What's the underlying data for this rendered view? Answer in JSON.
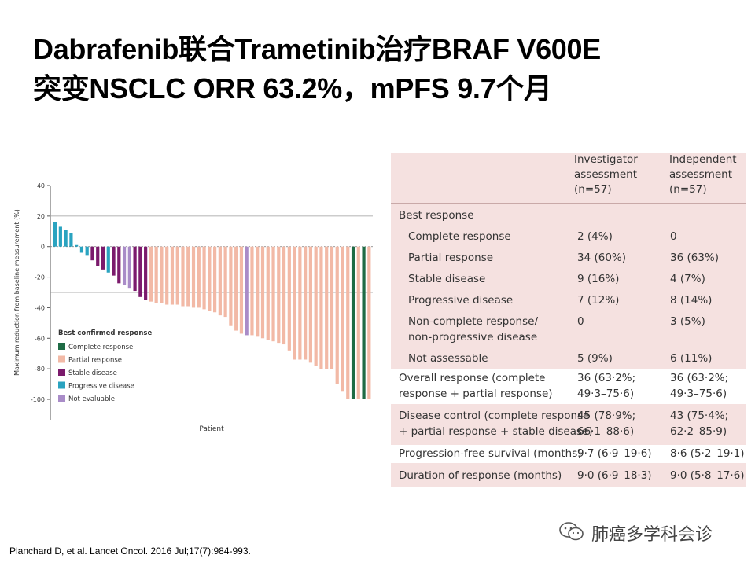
{
  "slide": {
    "title_line1": "Dabrafenib联合Trametinib治疗BRAF V600E",
    "title_line2": "突变NSCLC ORR 63.2%，mPFS 9.7个月",
    "citation": "Planchard D, et al. Lancet Oncol. 2016 Jul;17(7):984-993.",
    "brand": "肺癌多学科会诊"
  },
  "table": {
    "col2_header": "Investigator\nassessment\n(n=57)",
    "col3_header": "Independent\nassessment\n(n=57)",
    "section": "Best response",
    "rows": [
      {
        "label": "Complete response",
        "inv": "2 (4%)",
        "ind": "0"
      },
      {
        "label": "Partial response",
        "inv": "34 (60%)",
        "ind": "36 (63%)"
      },
      {
        "label": "Stable disease",
        "inv": "9 (16%)",
        "ind": "4 (7%)"
      },
      {
        "label": "Progressive disease",
        "inv": "7 (12%)",
        "ind": "8 (14%)"
      },
      {
        "label": "Non-complete response/",
        "label2": "non-progressive disease",
        "inv": "0",
        "ind": "3 (5%)"
      },
      {
        "label": "Not assessable",
        "inv": "5 (9%)",
        "ind": "6 (11%)"
      }
    ],
    "orr": {
      "label": "Overall response (complete",
      "label2": "response + partial response)",
      "inv": "36 (63·2%;",
      "inv2": "49·3–75·6)",
      "ind": "36 (63·2%;",
      "ind2": "49·3–75·6)"
    },
    "dcr": {
      "label": "Disease control (complete response",
      "label2": "+ partial response + stable disease)",
      "inv": "45 (78·9%;",
      "inv2": "66·1–88·6)",
      "ind": "43 (75·4%;",
      "ind2": "62·2–85·9)"
    },
    "pfs": {
      "label": "Progression-free survival (months)",
      "inv": "9·7 (6·9–19·6)",
      "ind": "8·6 (5·2–19·1)"
    },
    "dor": {
      "label": "Duration of response (months)",
      "inv": "9·0 (6·9–18·3)",
      "ind": "9·0 (5·8–17·6)"
    }
  },
  "chart_data": {
    "type": "bar",
    "xlabel": "Patient",
    "ylabel": "Maximum reduction from baseline measurement (%)",
    "ylim": [
      -100,
      40
    ],
    "yticks": [
      40,
      20,
      0,
      -20,
      -40,
      -60,
      -80,
      -100
    ],
    "reference_lines": [
      20,
      -30
    ],
    "legend_title": "Best confirmed response",
    "legend": [
      {
        "key": "CR",
        "name": "Complete response",
        "color": "#1e6b45"
      },
      {
        "key": "PR",
        "name": "Partial response",
        "color": "#f2b9a6"
      },
      {
        "key": "SD",
        "name": "Stable disease",
        "color": "#7b1a6c"
      },
      {
        "key": "PD",
        "name": "Progressive disease",
        "color": "#2aa3c0"
      },
      {
        "key": "NE",
        "name": "Not evaluable",
        "color": "#a98cc8"
      }
    ],
    "values": [
      16,
      13,
      11,
      9,
      1,
      -4,
      -6,
      -9,
      -13,
      -15,
      -17,
      -19,
      -24,
      -25,
      -27,
      -29,
      -33,
      -35,
      -36,
      -37,
      -37,
      -38,
      -38,
      -38,
      -39,
      -39,
      -40,
      -40,
      -41,
      -42,
      -43,
      -45,
      -46,
      -52,
      -55,
      -57,
      -58,
      -58,
      -59,
      -60,
      -61,
      -62,
      -63,
      -64,
      -68,
      -74,
      -74,
      -74,
      -76,
      -78,
      -80,
      -80,
      -80,
      -90,
      -95,
      -100,
      -100,
      -100,
      -100,
      -100
    ],
    "categories": [
      "PD",
      "PD",
      "PD",
      "PD",
      "PD",
      "PD",
      "PD",
      "SD",
      "SD",
      "SD",
      "PD",
      "SD",
      "SD",
      "NE",
      "NE",
      "SD",
      "SD",
      "SD",
      "PR",
      "PR",
      "PR",
      "PR",
      "PR",
      "PR",
      "PR",
      "PR",
      "PR",
      "PR",
      "PR",
      "PR",
      "PR",
      "PR",
      "PR",
      "PR",
      "PR",
      "PR",
      "NE",
      "PR",
      "PR",
      "PR",
      "PR",
      "PR",
      "PR",
      "PR",
      "PR",
      "PR",
      "PR",
      "PR",
      "PR",
      "PR",
      "PR",
      "PR",
      "PR",
      "PR",
      "PR",
      "PR",
      "CR",
      "PR",
      "CR",
      "PR"
    ]
  }
}
